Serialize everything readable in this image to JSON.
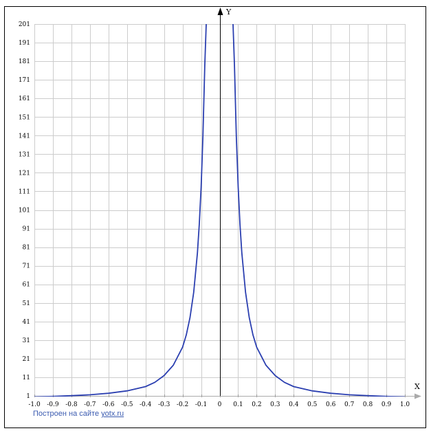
{
  "chart_data": {
    "type": "line",
    "xlabel": "X",
    "ylabel": "Y",
    "xlim": [
      -1.0,
      1.0
    ],
    "ylim": [
      1,
      201
    ],
    "x_ticks": [
      "-1.0",
      "-0.9",
      "-0.8",
      "-0.7",
      "-0.6",
      "-0.5",
      "-0.4",
      "-0.3",
      "-0.2",
      "-0.1",
      "0",
      "0.1",
      "0.2",
      "0.3",
      "0.4",
      "0.5",
      "0.6",
      "0.7",
      "0.8",
      "0.9",
      "1.0"
    ],
    "y_ticks": [
      "1",
      "11",
      "21",
      "31",
      "41",
      "51",
      "61",
      "71",
      "81",
      "91",
      "101",
      "111",
      "121",
      "131",
      "141",
      "151",
      "161",
      "171",
      "181",
      "191",
      "201"
    ],
    "grid": true,
    "line_color": "#2b3fb0",
    "series": [
      {
        "points": [
          [
            -1.0,
            0.5
          ],
          [
            -0.9,
            0.7
          ],
          [
            -0.8,
            1.1
          ],
          [
            -0.7,
            1.6
          ],
          [
            -0.6,
            2.4
          ],
          [
            -0.5,
            3.7
          ],
          [
            -0.4,
            6.0
          ],
          [
            -0.35,
            8.3
          ],
          [
            -0.3,
            11.9
          ],
          [
            -0.25,
            17.5
          ],
          [
            -0.2,
            27.2
          ],
          [
            -0.18,
            33.8
          ],
          [
            -0.16,
            43.1
          ],
          [
            -0.14,
            56.7
          ],
          [
            -0.12,
            77.9
          ],
          [
            -0.11,
            93.3
          ],
          [
            -0.1,
            113.3
          ],
          [
            -0.09,
            140.5
          ],
          [
            -0.08,
            178.6
          ],
          [
            -0.0725,
            201
          ],
          [
            0.0725,
            201
          ],
          [
            0.08,
            178.6
          ],
          [
            0.09,
            140.5
          ],
          [
            0.1,
            113.3
          ],
          [
            0.11,
            93.3
          ],
          [
            0.12,
            77.9
          ],
          [
            0.14,
            56.7
          ],
          [
            0.16,
            43.1
          ],
          [
            0.18,
            33.8
          ],
          [
            0.2,
            27.2
          ],
          [
            0.25,
            17.5
          ],
          [
            0.3,
            11.9
          ],
          [
            0.35,
            8.3
          ],
          [
            0.4,
            6.0
          ],
          [
            0.5,
            3.7
          ],
          [
            0.6,
            2.4
          ],
          [
            0.7,
            1.6
          ],
          [
            0.8,
            1.1
          ],
          [
            0.9,
            0.7
          ],
          [
            1.0,
            0.5
          ]
        ]
      }
    ]
  },
  "credit": {
    "prefix": "Построен на сайте ",
    "link_text": "yotx.ru"
  }
}
